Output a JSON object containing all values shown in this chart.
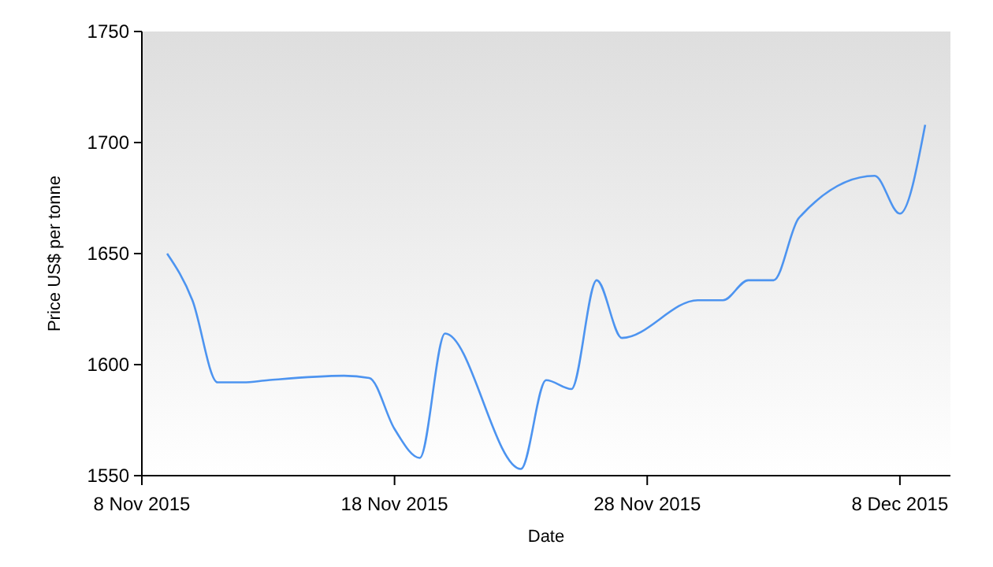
{
  "chart_data": {
    "type": "line",
    "xlabel": "Date",
    "ylabel": "Price US$ per tonne",
    "x": [
      "2015-11-09",
      "2015-11-10",
      "2015-11-11",
      "2015-11-12",
      "2015-11-13",
      "2015-11-16",
      "2015-11-17",
      "2015-11-18",
      "2015-11-19",
      "2015-11-20",
      "2015-11-23",
      "2015-11-24",
      "2015-11-25",
      "2015-11-26",
      "2015-11-27",
      "2015-11-30",
      "2015-12-01",
      "2015-12-02",
      "2015-12-03",
      "2015-12-04",
      "2015-12-07",
      "2015-12-08",
      "2015-12-09"
    ],
    "series": [
      {
        "color": "#4d94f0",
        "values": [
          1650,
          1629,
          1592,
          1592,
          1593,
          1595,
          1594,
          1571,
          1558,
          1614,
          1553,
          1593,
          1589,
          1638,
          1612,
          1629,
          1629,
          1638,
          1638,
          1666,
          1685,
          1668,
          1708
        ]
      }
    ],
    "xlim": [
      "2015-11-08",
      "2015-12-10"
    ],
    "xticks": [
      {
        "value": "2015-11-08",
        "label": "8 Nov 2015"
      },
      {
        "value": "2015-11-18",
        "label": "18 Nov 2015"
      },
      {
        "value": "2015-11-28",
        "label": "28 Nov 2015"
      },
      {
        "value": "2015-12-08",
        "label": "8 Dec 2015"
      }
    ],
    "ylim": [
      1550,
      1750
    ],
    "yticks": [
      1550,
      1600,
      1650,
      1700,
      1750
    ],
    "grid": false,
    "marker": "none",
    "line_style": "solid"
  }
}
